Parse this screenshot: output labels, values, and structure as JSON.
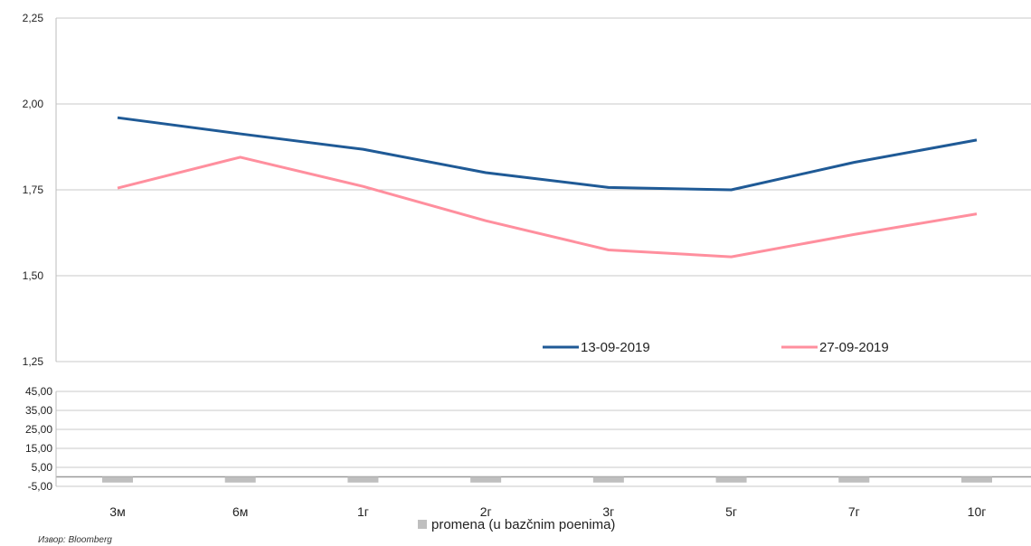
{
  "chart_data": [
    {
      "type": "line",
      "categories": [
        "3м",
        "6м",
        "1г",
        "2г",
        "3г",
        "5г",
        "7г",
        "10г"
      ],
      "ylim": [
        1.25,
        2.25
      ],
      "yticks": [
        "1,25",
        "1,50",
        "1,75",
        "2,00",
        "2,25"
      ],
      "grid": true,
      "legend_position": "bottom-center",
      "series": [
        {
          "name": "13-09-2019",
          "color": "#1f5a96",
          "values": [
            1.96,
            1.913,
            1.868,
            1.8,
            1.757,
            1.75,
            1.83,
            1.895
          ]
        },
        {
          "name": "27-09-2019",
          "color": "#ff8f9e",
          "values": [
            1.755,
            1.845,
            1.76,
            1.66,
            1.575,
            1.555,
            1.62,
            1.68
          ]
        }
      ]
    },
    {
      "type": "bar",
      "categories": [
        "3м",
        "6м",
        "1г",
        "2г",
        "3г",
        "5г",
        "7г",
        "10г"
      ],
      "ylim": [
        -5,
        45
      ],
      "yticks": [
        "-5,00",
        "5,00",
        "15,00",
        "25,00",
        "35,00",
        "45,00"
      ],
      "grid": true,
      "color": "#bfbfbf",
      "series": [
        {
          "name": "promena (u bazčnim poenima)",
          "values": [
            -3,
            -3,
            -3,
            -3,
            -3,
            -3,
            -3,
            -3
          ]
        }
      ]
    }
  ],
  "source_note": "Извор: Bloomberg"
}
